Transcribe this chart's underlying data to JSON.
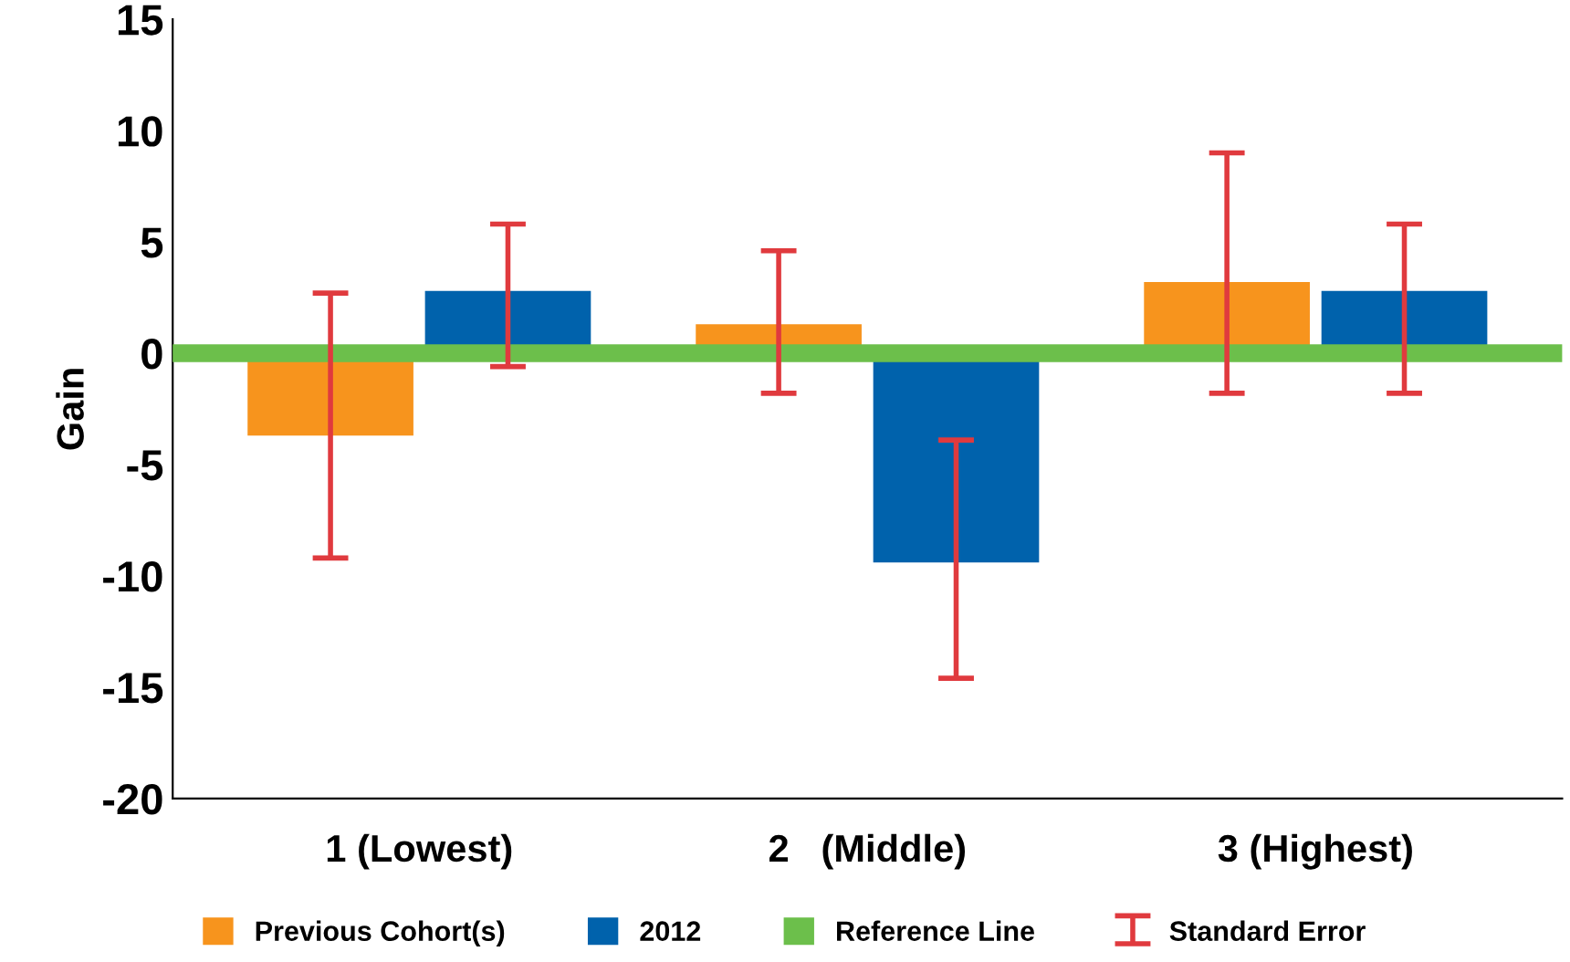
{
  "chart_data": {
    "type": "bar",
    "ylabel": "Gain",
    "categories": [
      "1 (Lowest)",
      "2   (Middle)",
      "3 (Highest)"
    ],
    "series": [
      {
        "name": "Previous Cohort(s)",
        "color": "#f7941d",
        "values": [
          -3.7,
          1.3,
          3.2
        ],
        "errors": [
          [
            -9.2,
            2.7
          ],
          [
            -1.8,
            4.6
          ],
          [
            -1.8,
            9.0
          ]
        ]
      },
      {
        "name": "2012",
        "color": "#0062ac",
        "values": [
          2.8,
          -9.4,
          2.8
        ],
        "errors": [
          [
            -0.6,
            5.8
          ],
          [
            -14.6,
            -3.9
          ],
          [
            -1.8,
            5.8
          ]
        ]
      }
    ],
    "ref_lines": [
      {
        "axis": "y",
        "value": 0,
        "label": "Reference Line",
        "color": "#6cbf4b"
      }
    ],
    "annotations": [
      "Standard Error"
    ],
    "ylim": [
      -20,
      15
    ],
    "yticks": [
      -20,
      -15,
      -10,
      -5,
      0,
      5,
      10,
      15
    ],
    "grid": false,
    "legend": "bottom"
  }
}
